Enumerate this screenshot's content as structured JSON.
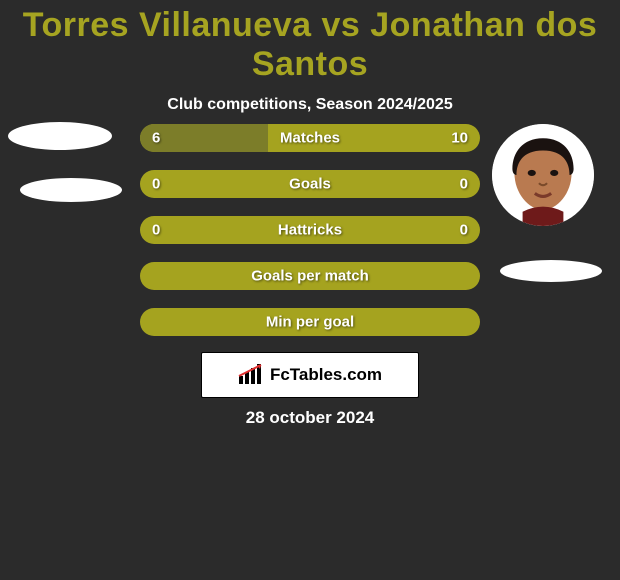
{
  "title": {
    "text": "Torres Villanueva vs Jonathan dos Santos",
    "color": "#a6a421",
    "fontsize": 34
  },
  "subtitle": "Club competitions, Season 2024/2025",
  "colors": {
    "background": "#2b2b2b",
    "bar_left": "#7c7d29",
    "bar_right": "#a5a31f",
    "title": "#a6a421",
    "text": "#ffffff",
    "logo_bg": "#ffffff"
  },
  "bars": [
    {
      "label": "Matches",
      "left": "6",
      "right": "10",
      "left_pct": 37.5,
      "show_values": true
    },
    {
      "label": "Goals",
      "left": "0",
      "right": "0",
      "left_pct": 0,
      "full": true,
      "show_values": true
    },
    {
      "label": "Hattricks",
      "left": "0",
      "right": "0",
      "left_pct": 0,
      "full": true,
      "show_values": true
    },
    {
      "label": "Goals per match",
      "left": "",
      "right": "",
      "left_pct": 0,
      "full": true,
      "show_values": false
    },
    {
      "label": "Min per goal",
      "left": "",
      "right": "",
      "left_pct": 0,
      "full": true,
      "show_values": false
    }
  ],
  "logo": {
    "brand": "FcTables.com"
  },
  "date": "28 october 2024"
}
